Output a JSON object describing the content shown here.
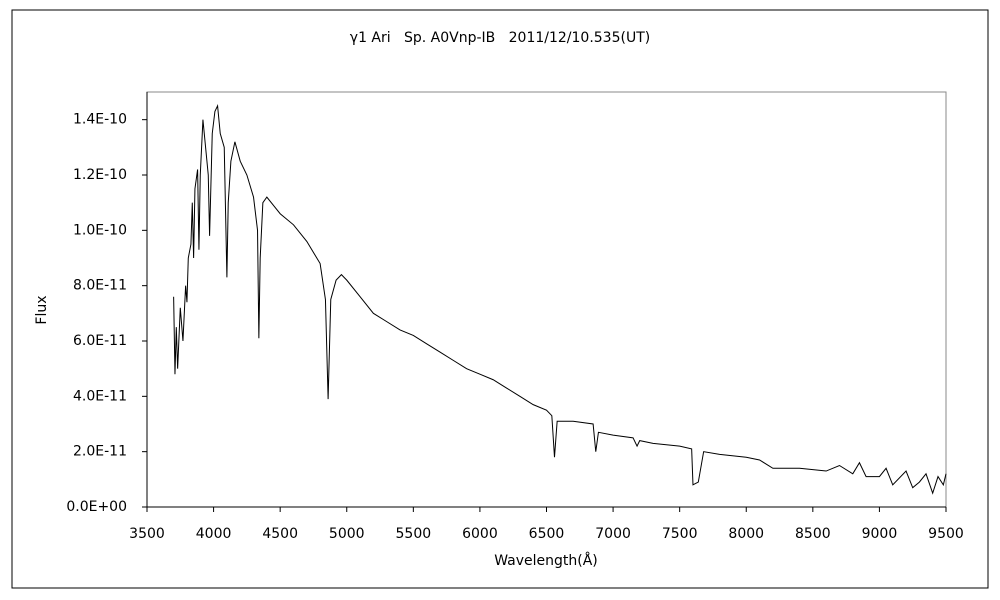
{
  "chart_data": {
    "type": "line",
    "title": "γ1 Ari   Sp. A0Vnp-IB   2011/12/10.535(UT)",
    "x_label": "Wavelength(Å)",
    "y_label": "Flux",
    "xlim": [
      3500,
      9500
    ],
    "xticks": [
      3500,
      4000,
      4500,
      5000,
      5500,
      6000,
      6500,
      7000,
      7500,
      8000,
      8500,
      9000,
      9500
    ],
    "ylim": [
      0,
      1.5e-10
    ],
    "yticks": [
      {
        "value": 0,
        "label": "0.0E+00"
      },
      {
        "value": 2e-11,
        "label": "2.0E-11"
      },
      {
        "value": 4e-11,
        "label": "4.0E-11"
      },
      {
        "value": 6e-11,
        "label": "6.0E-11"
      },
      {
        "value": 8e-11,
        "label": "8.0E-11"
      },
      {
        "value": 1e-10,
        "label": "1.0E-10"
      },
      {
        "value": 1.2e-10,
        "label": "1.2E-10"
      },
      {
        "value": 1.4e-10,
        "label": "1.4E-10"
      }
    ],
    "grid": false,
    "color": "#000000",
    "x": [
      3700,
      3710,
      3720,
      3730,
      3750,
      3770,
      3790,
      3800,
      3810,
      3830,
      3840,
      3850,
      3860,
      3880,
      3890,
      3900,
      3920,
      3940,
      3960,
      3970,
      3990,
      4010,
      4030,
      4050,
      4080,
      4100,
      4110,
      4130,
      4160,
      4200,
      4250,
      4300,
      4330,
      4340,
      4350,
      4370,
      4400,
      4450,
      4500,
      4600,
      4700,
      4800,
      4840,
      4860,
      4880,
      4920,
      4960,
      5000,
      5100,
      5200,
      5300,
      5400,
      5500,
      5600,
      5700,
      5800,
      5900,
      6000,
      6100,
      6200,
      6300,
      6400,
      6500,
      6540,
      6560,
      6580,
      6700,
      6850,
      6870,
      6890,
      7000,
      7150,
      7180,
      7200,
      7300,
      7500,
      7590,
      7600,
      7640,
      7680,
      7800,
      8000,
      8100,
      8200,
      8400,
      8600,
      8700,
      8800,
      8850,
      8900,
      9000,
      9050,
      9100,
      9200,
      9250,
      9300,
      9350,
      9400,
      9440,
      9480,
      9500
    ],
    "values": [
      7.6e-11,
      4.8e-11,
      6.5e-11,
      5e-11,
      7.2e-11,
      6e-11,
      8e-11,
      7.4e-11,
      9e-11,
      9.5e-11,
      1.1e-10,
      9e-11,
      1.15e-10,
      1.22e-10,
      9.3e-11,
      1.2e-10,
      1.4e-10,
      1.3e-10,
      1.2e-10,
      9.8e-11,
      1.35e-10,
      1.43e-10,
      1.45e-10,
      1.35e-10,
      1.3e-10,
      8.3e-11,
      1.1e-10,
      1.25e-10,
      1.32e-10,
      1.25e-10,
      1.2e-10,
      1.12e-10,
      1e-10,
      6.1e-11,
      9e-11,
      1.1e-10,
      1.12e-10,
      1.09e-10,
      1.06e-10,
      1.02e-10,
      9.6e-11,
      8.8e-11,
      7.5e-11,
      3.9e-11,
      7.5e-11,
      8.2e-11,
      8.4e-11,
      8.2e-11,
      7.6e-11,
      7e-11,
      6.7e-11,
      6.4e-11,
      6.2e-11,
      5.9e-11,
      5.6e-11,
      5.3e-11,
      5e-11,
      4.8e-11,
      4.6e-11,
      4.3e-11,
      4e-11,
      3.7e-11,
      3.5e-11,
      3.3e-11,
      1.8e-11,
      3.1e-11,
      3.1e-11,
      3e-11,
      2e-11,
      2.7e-11,
      2.6e-11,
      2.5e-11,
      2.2e-11,
      2.4e-11,
      2.3e-11,
      2.2e-11,
      2.1e-11,
      8e-12,
      9e-12,
      2e-11,
      1.9e-11,
      1.8e-11,
      1.7e-11,
      1.4e-11,
      1.4e-11,
      1.3e-11,
      1.5e-11,
      1.2e-11,
      1.6e-11,
      1.1e-11,
      1.1e-11,
      1.4e-11,
      8e-12,
      1.3e-11,
      7e-12,
      9e-12,
      1.2e-11,
      5e-12,
      1.1e-11,
      8e-12,
      1.2e-11
    ]
  }
}
